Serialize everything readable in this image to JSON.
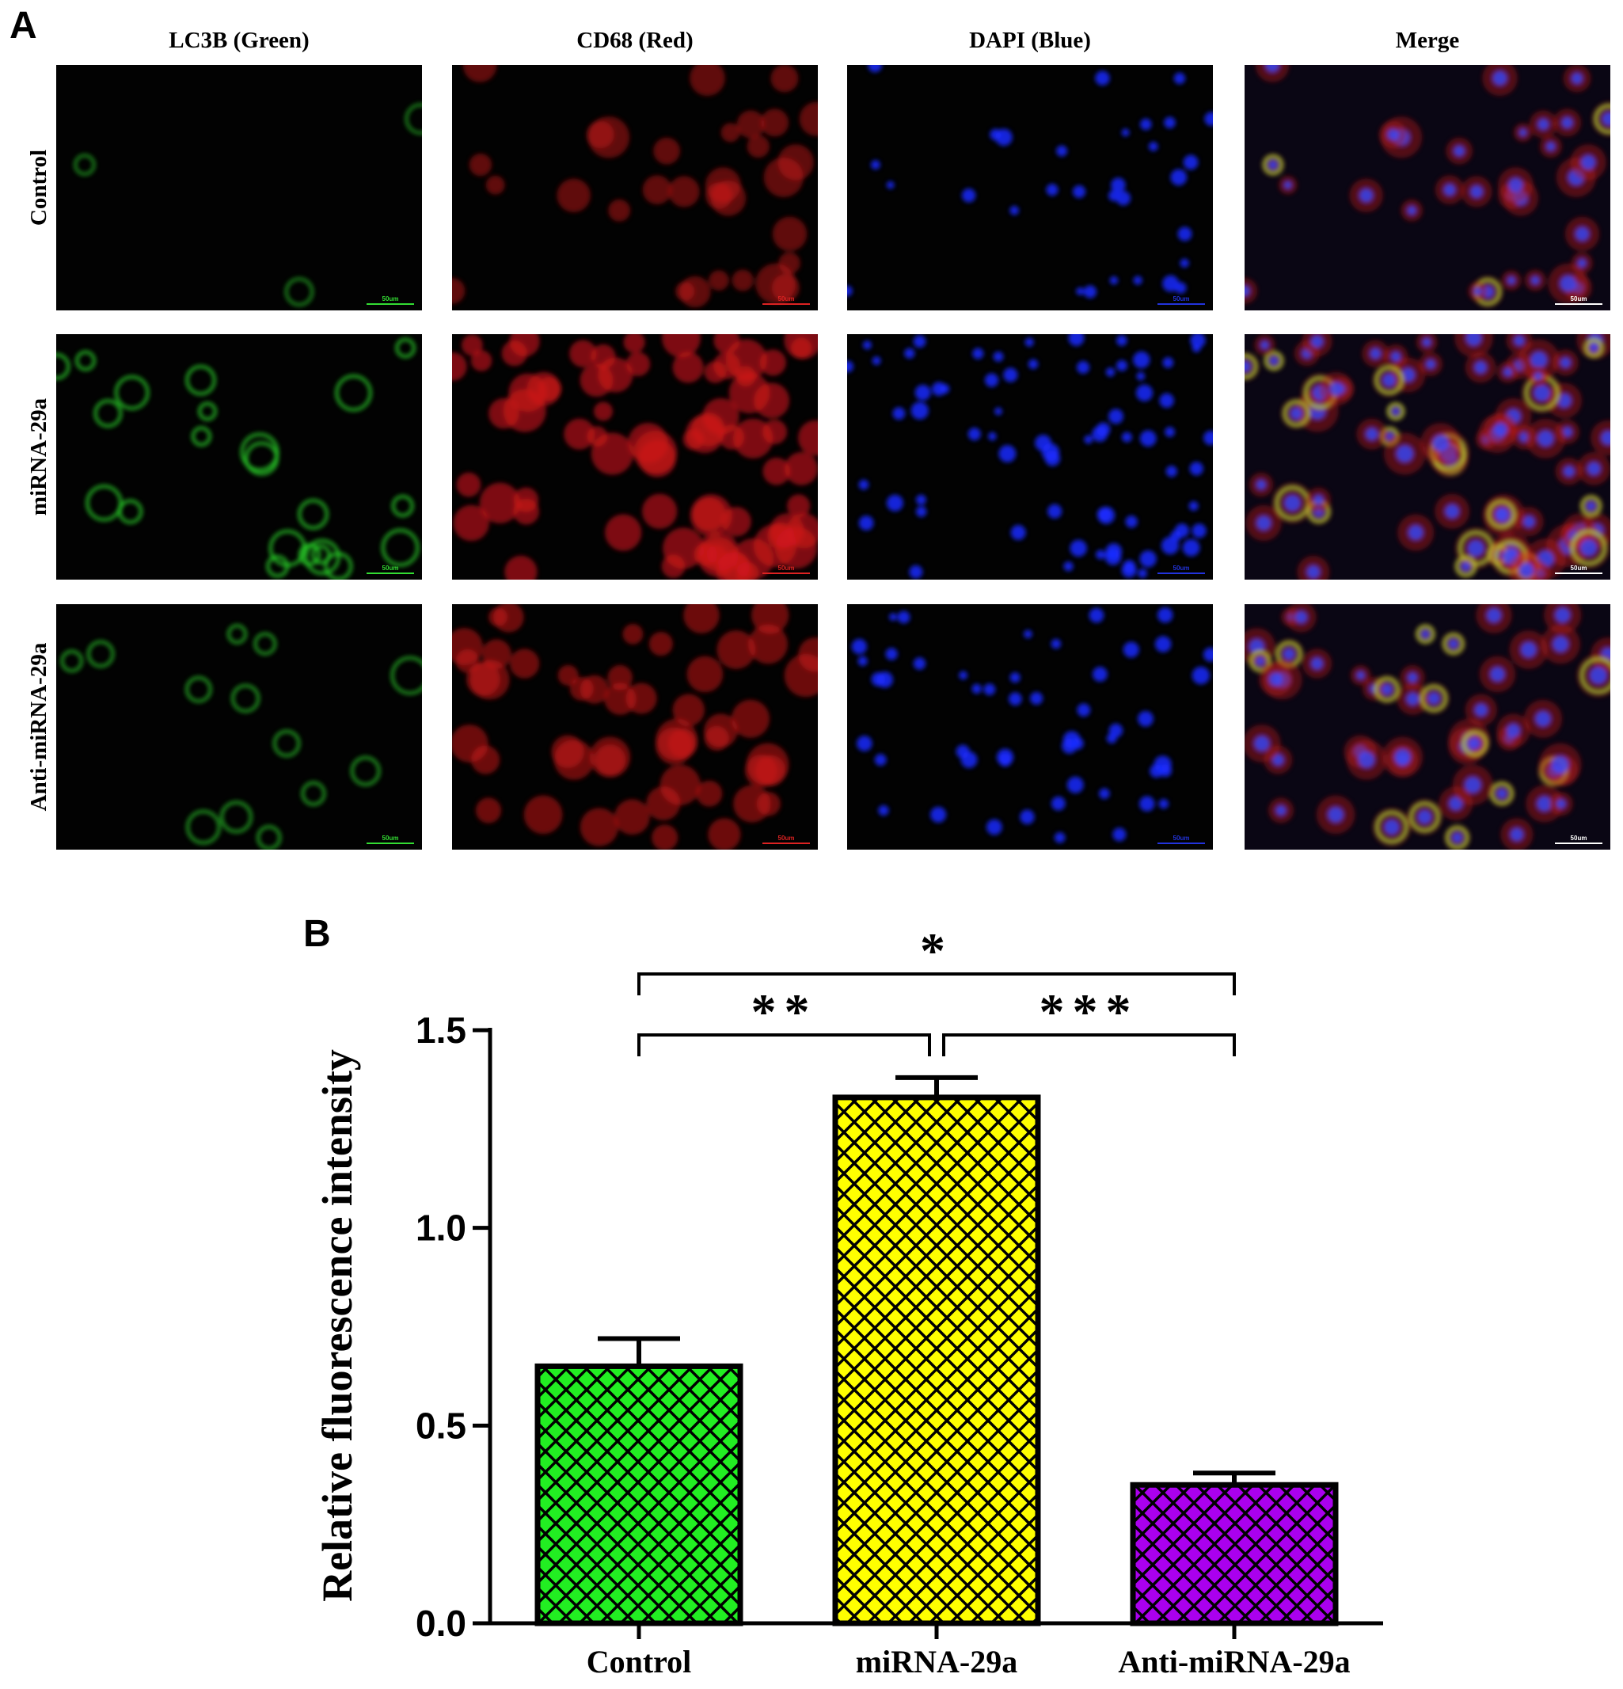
{
  "panel_a": {
    "label": "A",
    "columns": [
      "LC3B (Green)",
      "CD68 (Red)",
      "DAPI (Blue)",
      "Merge"
    ],
    "rows": [
      "Control",
      "miRNA-29a",
      "Anti-miRNA-29a"
    ],
    "scale_bar": "50um"
  },
  "chart_data": {
    "type": "bar",
    "panel_label": "B",
    "ylabel": "Relative fluorescence intensity",
    "categories": [
      "Control",
      "miRNA-29a",
      "Anti-miRNA-29a"
    ],
    "values": [
      0.65,
      1.33,
      0.35
    ],
    "errors": [
      0.07,
      0.05,
      0.03
    ],
    "colors": [
      "#22ee22",
      "#ffff00",
      "#aa00ee"
    ],
    "ylim": [
      0,
      1.5
    ],
    "yticks": [
      {
        "value": 0,
        "label": "0.0"
      },
      0.5,
      {
        "value": 1,
        "label": "1.0"
      },
      1.5
    ],
    "significance": [
      {
        "pair": [
          0,
          2
        ],
        "label": "*"
      },
      {
        "pair": [
          0,
          1
        ],
        "label": "**"
      },
      {
        "pair": [
          1,
          2
        ],
        "label": "***"
      }
    ]
  }
}
